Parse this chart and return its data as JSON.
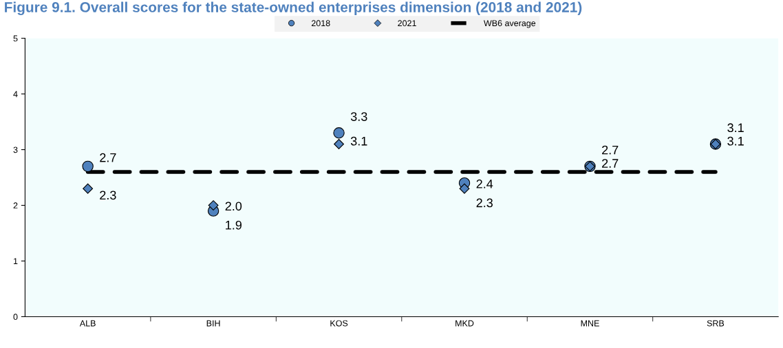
{
  "chart_data": {
    "type": "scatter",
    "title": "Figure 9.1. Overall scores for the state-owned enterprises dimension (2018 and 2021)",
    "categories": [
      "ALB",
      "BIH",
      "KOS",
      "MKD",
      "MNE",
      "SRB"
    ],
    "series": [
      {
        "name": "2018",
        "marker": "circle",
        "color": "#4f81bd",
        "values": [
          2.7,
          1.9,
          3.3,
          2.4,
          2.7,
          3.1
        ],
        "value_labels": [
          "2.7",
          "1.9",
          "3.3",
          "2.4",
          "2.7",
          "3.1"
        ]
      },
      {
        "name": "2021",
        "marker": "diamond",
        "color": "#4f81bd",
        "values": [
          2.3,
          2.0,
          3.1,
          2.3,
          2.7,
          3.1
        ],
        "value_labels": [
          "2.3",
          "2.0",
          "3.1",
          "2.3",
          "2.7",
          "3.1"
        ]
      },
      {
        "name": "WB6 average",
        "type": "line",
        "marker": "none",
        "line_style": "dashed",
        "color": "#000000",
        "values": [
          2.6,
          2.6,
          2.6,
          2.6,
          2.6,
          2.6
        ]
      }
    ],
    "ylim": [
      0,
      5
    ],
    "yticks": [
      0,
      1,
      2,
      3,
      4,
      5
    ],
    "grid": false,
    "legend": "top"
  }
}
